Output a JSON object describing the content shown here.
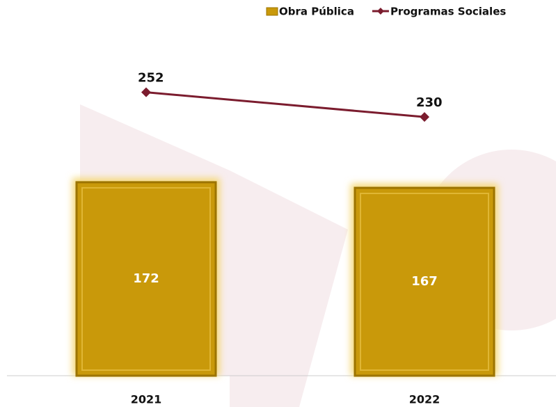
{
  "chart_data": {
    "type": "combo",
    "categories": [
      "2021",
      "2022"
    ],
    "series": [
      {
        "name": "Obra Pública",
        "type": "bar",
        "color": "#c9990a",
        "values": [
          172,
          167
        ]
      },
      {
        "name": "Programas Sociales",
        "type": "line",
        "color": "#7b1c2e",
        "values": [
          252,
          230
        ]
      }
    ],
    "ylim": [
      0,
      300
    ]
  }
}
